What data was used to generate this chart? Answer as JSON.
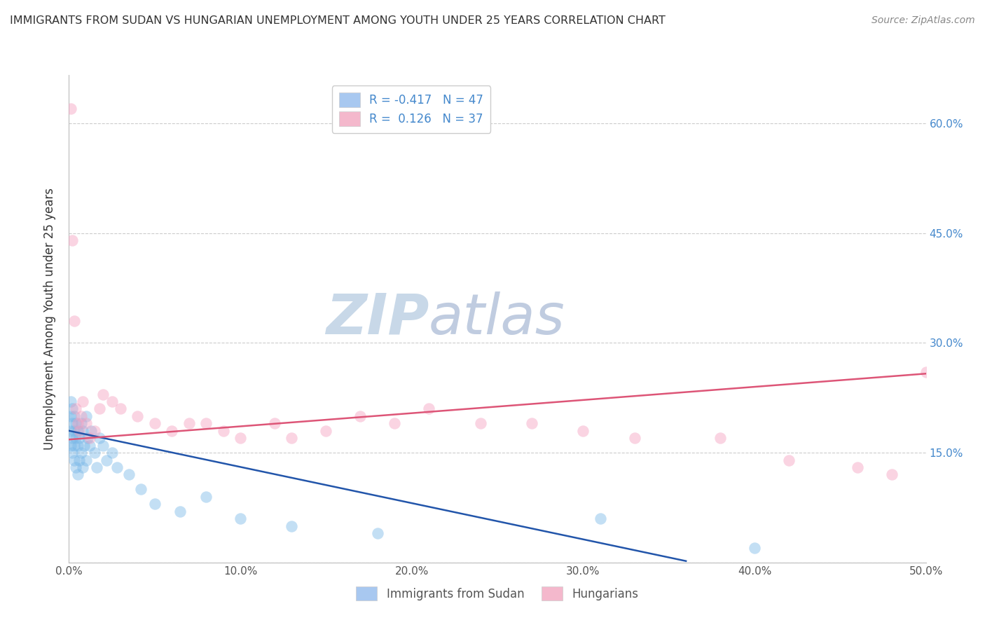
{
  "title": "IMMIGRANTS FROM SUDAN VS HUNGARIAN UNEMPLOYMENT AMONG YOUTH UNDER 25 YEARS CORRELATION CHART",
  "source": "Source: ZipAtlas.com",
  "ylabel": "Unemployment Among Youth under 25 years",
  "xlim": [
    0.0,
    0.5
  ],
  "ylim": [
    0.0,
    0.666
  ],
  "xtick_labels": [
    "0.0%",
    "10.0%",
    "20.0%",
    "30.0%",
    "40.0%",
    "50.0%"
  ],
  "xtick_vals": [
    0.0,
    0.1,
    0.2,
    0.3,
    0.4,
    0.5
  ],
  "right_ytick_labels": [
    "15.0%",
    "30.0%",
    "45.0%",
    "60.0%"
  ],
  "right_ytick_vals": [
    0.15,
    0.3,
    0.45,
    0.6
  ],
  "blue_scatter_x": [
    0.001,
    0.001,
    0.001,
    0.001,
    0.002,
    0.002,
    0.002,
    0.002,
    0.003,
    0.003,
    0.003,
    0.003,
    0.004,
    0.004,
    0.004,
    0.005,
    0.005,
    0.005,
    0.006,
    0.006,
    0.007,
    0.007,
    0.008,
    0.008,
    0.009,
    0.01,
    0.01,
    0.011,
    0.012,
    0.013,
    0.015,
    0.016,
    0.018,
    0.02,
    0.022,
    0.025,
    0.028,
    0.035,
    0.042,
    0.05,
    0.065,
    0.08,
    0.1,
    0.13,
    0.18,
    0.31,
    0.4
  ],
  "blue_scatter_y": [
    0.2,
    0.22,
    0.18,
    0.16,
    0.21,
    0.19,
    0.17,
    0.15,
    0.2,
    0.18,
    0.16,
    0.14,
    0.19,
    0.17,
    0.13,
    0.18,
    0.16,
    0.12,
    0.17,
    0.14,
    0.19,
    0.15,
    0.18,
    0.13,
    0.16,
    0.2,
    0.14,
    0.17,
    0.16,
    0.18,
    0.15,
    0.13,
    0.17,
    0.16,
    0.14,
    0.15,
    0.13,
    0.12,
    0.1,
    0.08,
    0.07,
    0.09,
    0.06,
    0.05,
    0.04,
    0.06,
    0.02
  ],
  "pink_scatter_x": [
    0.001,
    0.002,
    0.003,
    0.004,
    0.005,
    0.006,
    0.007,
    0.008,
    0.01,
    0.012,
    0.015,
    0.018,
    0.02,
    0.025,
    0.03,
    0.04,
    0.05,
    0.06,
    0.07,
    0.08,
    0.09,
    0.1,
    0.12,
    0.13,
    0.15,
    0.17,
    0.19,
    0.21,
    0.24,
    0.27,
    0.3,
    0.33,
    0.38,
    0.42,
    0.46,
    0.48,
    0.5
  ],
  "pink_scatter_y": [
    0.62,
    0.44,
    0.33,
    0.21,
    0.19,
    0.18,
    0.2,
    0.22,
    0.19,
    0.17,
    0.18,
    0.21,
    0.23,
    0.22,
    0.21,
    0.2,
    0.19,
    0.18,
    0.19,
    0.19,
    0.18,
    0.17,
    0.19,
    0.17,
    0.18,
    0.2,
    0.19,
    0.21,
    0.19,
    0.19,
    0.18,
    0.17,
    0.17,
    0.14,
    0.13,
    0.12,
    0.26
  ],
  "blue_line_x": [
    0.0,
    0.36
  ],
  "blue_line_y": [
    0.18,
    0.002
  ],
  "pink_line_x": [
    0.0,
    0.5
  ],
  "pink_line_y": [
    0.168,
    0.258
  ],
  "blue_color": "#7ab8e8",
  "pink_color": "#f4a0c0",
  "blue_line_color": "#2255aa",
  "pink_line_color": "#dd5577",
  "watermark_zip_color": "#c8d8e8",
  "watermark_atlas_color": "#c0cce0",
  "background_color": "#ffffff",
  "grid_color": "#dddddd",
  "dotted_grid_color": "#cccccc"
}
